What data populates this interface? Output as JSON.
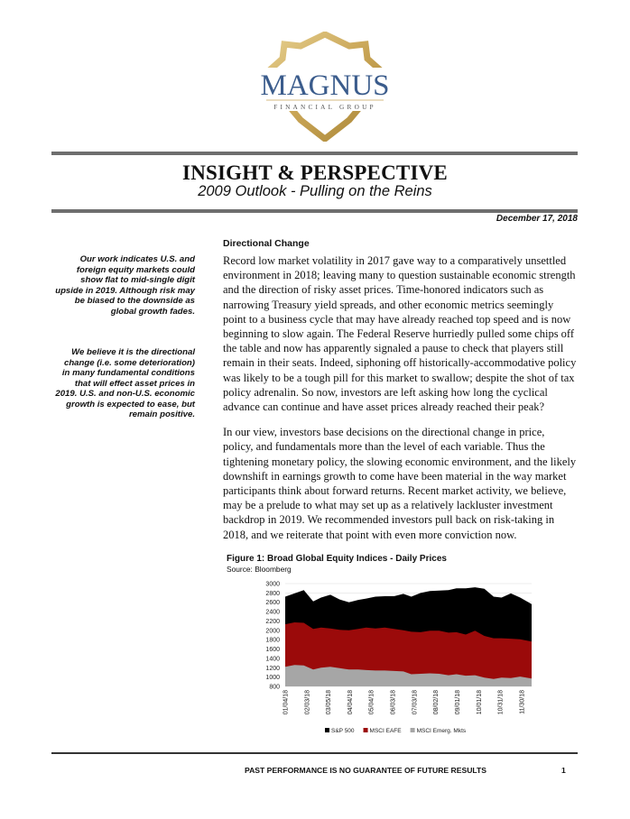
{
  "logo": {
    "name": "MAGNUS",
    "tagline": "FINANCIAL GROUP",
    "colors": {
      "gold": "#c9a556",
      "navy": "#3b5c8c"
    }
  },
  "header": {
    "title": "INSIGHT & PERSPECTIVE",
    "subtitle": "2009 Outlook  -  Pulling on the Reins",
    "date": "December 17, 2018"
  },
  "sidebar": {
    "notes": [
      "Our work indicates U.S. and foreign equity markets could show flat to mid-single digit upside in 2019. Although risk may be biased to the downside as global growth fades.",
      "We believe it is the directional change (i.e. some deterioration) in many fundamental conditions that will effect asset prices in 2019. U.S. and non-U.S. economic growth is expected to ease, but remain positive."
    ]
  },
  "main": {
    "heading": "Directional Change",
    "paragraphs": [
      "Record low market volatility in 2017 gave way to a comparatively unsettled environment in 2018; leaving many to question sustainable economic strength and the direction of risky asset prices.  Time-honored indicators such as narrowing Treasury yield spreads, and other economic metrics seemingly point to a business cycle that may have already reached top speed and is now beginning to slow again.  The Federal Reserve hurriedly pulled some chips off the table and now has apparently signaled a pause to check that players still remain in their seats.  Indeed, siphoning off historically-accommodative policy was likely to be a tough pill for this market to swallow; despite the shot of tax policy adrenalin.  So now, investors are left asking how long the cyclical advance can continue and have asset prices already reached their peak?",
      "In our view, investors base decisions on the directional change in price, policy, and fundamentals more than the level of each variable.  Thus the tightening monetary policy, the slowing economic environment, and the likely downshift in earnings growth to come have been material in the way market participants think about forward returns.  Recent market activity, we believe, may be a prelude to what may set up as a relatively lackluster investment backdrop in 2019.  We recommended investors pull back on risk-taking in 2018, and we reiterate that point with even more conviction now."
    ],
    "figure_title": "Figure 1:  Broad Global Equity Indices  -  Daily Prices",
    "figure_source": "Source: Bloomberg"
  },
  "chart_data": {
    "type": "area",
    "title": "Figure 1:  Broad Global Equity Indices  -  Daily Prices",
    "ylim": [
      800,
      3000
    ],
    "yticks": [
      "3000",
      "2800",
      "2600",
      "2400",
      "2200",
      "2000",
      "1800",
      "1600",
      "1400",
      "1200",
      "1000",
      "800"
    ],
    "xticks": [
      "01/04/18",
      "02/03/18",
      "03/05/18",
      "04/04/18",
      "05/04/18",
      "06/03/18",
      "07/03/18",
      "08/02/18",
      "09/01/18",
      "10/01/18",
      "10/31/18",
      "11/30/18"
    ],
    "grid": true,
    "legend_position": "bottom",
    "x": [
      "01/04/18",
      "01/17/18",
      "01/30/18",
      "02/12/18",
      "02/23/18",
      "03/08/18",
      "03/21/18",
      "04/03/18",
      "04/16/18",
      "04/27/18",
      "05/10/18",
      "05/23/18",
      "06/05/18",
      "06/18/18",
      "06/29/18",
      "07/12/18",
      "07/25/18",
      "08/07/18",
      "08/20/18",
      "08/31/18",
      "09/13/18",
      "09/26/18",
      "10/09/18",
      "10/22/18",
      "11/02/18",
      "11/15/18",
      "11/28/18",
      "12/14/18"
    ],
    "series": [
      {
        "name": "S&P 500",
        "color": "#000000",
        "values": [
          2720,
          2790,
          2860,
          2620,
          2700,
          2760,
          2660,
          2600,
          2650,
          2680,
          2720,
          2730,
          2730,
          2780,
          2720,
          2800,
          2840,
          2850,
          2860,
          2900,
          2900,
          2920,
          2890,
          2720,
          2700,
          2790,
          2700,
          2560
        ]
      },
      {
        "name": "MSCI EAFE",
        "color": "#9b0a0a",
        "values": [
          2130,
          2170,
          2160,
          2030,
          2060,
          2040,
          2010,
          2000,
          2030,
          2060,
          2040,
          2060,
          2030,
          2000,
          1970,
          1960,
          1990,
          1990,
          1950,
          1960,
          1910,
          1990,
          1880,
          1830,
          1830,
          1820,
          1810,
          1760
        ]
      },
      {
        "name": "MSCI Emerg. Mkts",
        "color": "#a6a6a6",
        "values": [
          1220,
          1260,
          1250,
          1160,
          1200,
          1220,
          1190,
          1160,
          1160,
          1150,
          1140,
          1140,
          1130,
          1120,
          1060,
          1070,
          1080,
          1070,
          1040,
          1060,
          1030,
          1040,
          990,
          960,
          990,
          980,
          1010,
          970
        ]
      }
    ]
  },
  "footer": {
    "disclaimer": "PAST PERFORMANCE IS NO GUARANTEE OF FUTURE RESULTS",
    "page": "1"
  }
}
